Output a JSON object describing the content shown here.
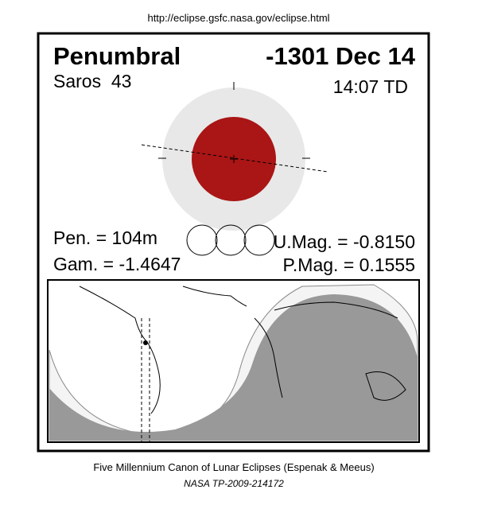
{
  "header": {
    "url": "http://eclipse.gsfc.nasa.gov/eclipse.html"
  },
  "eclipse": {
    "type": "Penumbral",
    "date": "-1301 Dec 14",
    "saros": "Saros  43",
    "time": "14:07 TD",
    "pen": "Pen. = 104m",
    "gam": "Gam. = -1.4647",
    "umag": "U.Mag. = -0.8150",
    "pmag": "P.Mag. = 0.1555"
  },
  "footer": {
    "line1": "Five Millennium Canon of Lunar Eclipses (Espenak & Meeus)",
    "line2": "NASA TP-2009-214172"
  }
}
